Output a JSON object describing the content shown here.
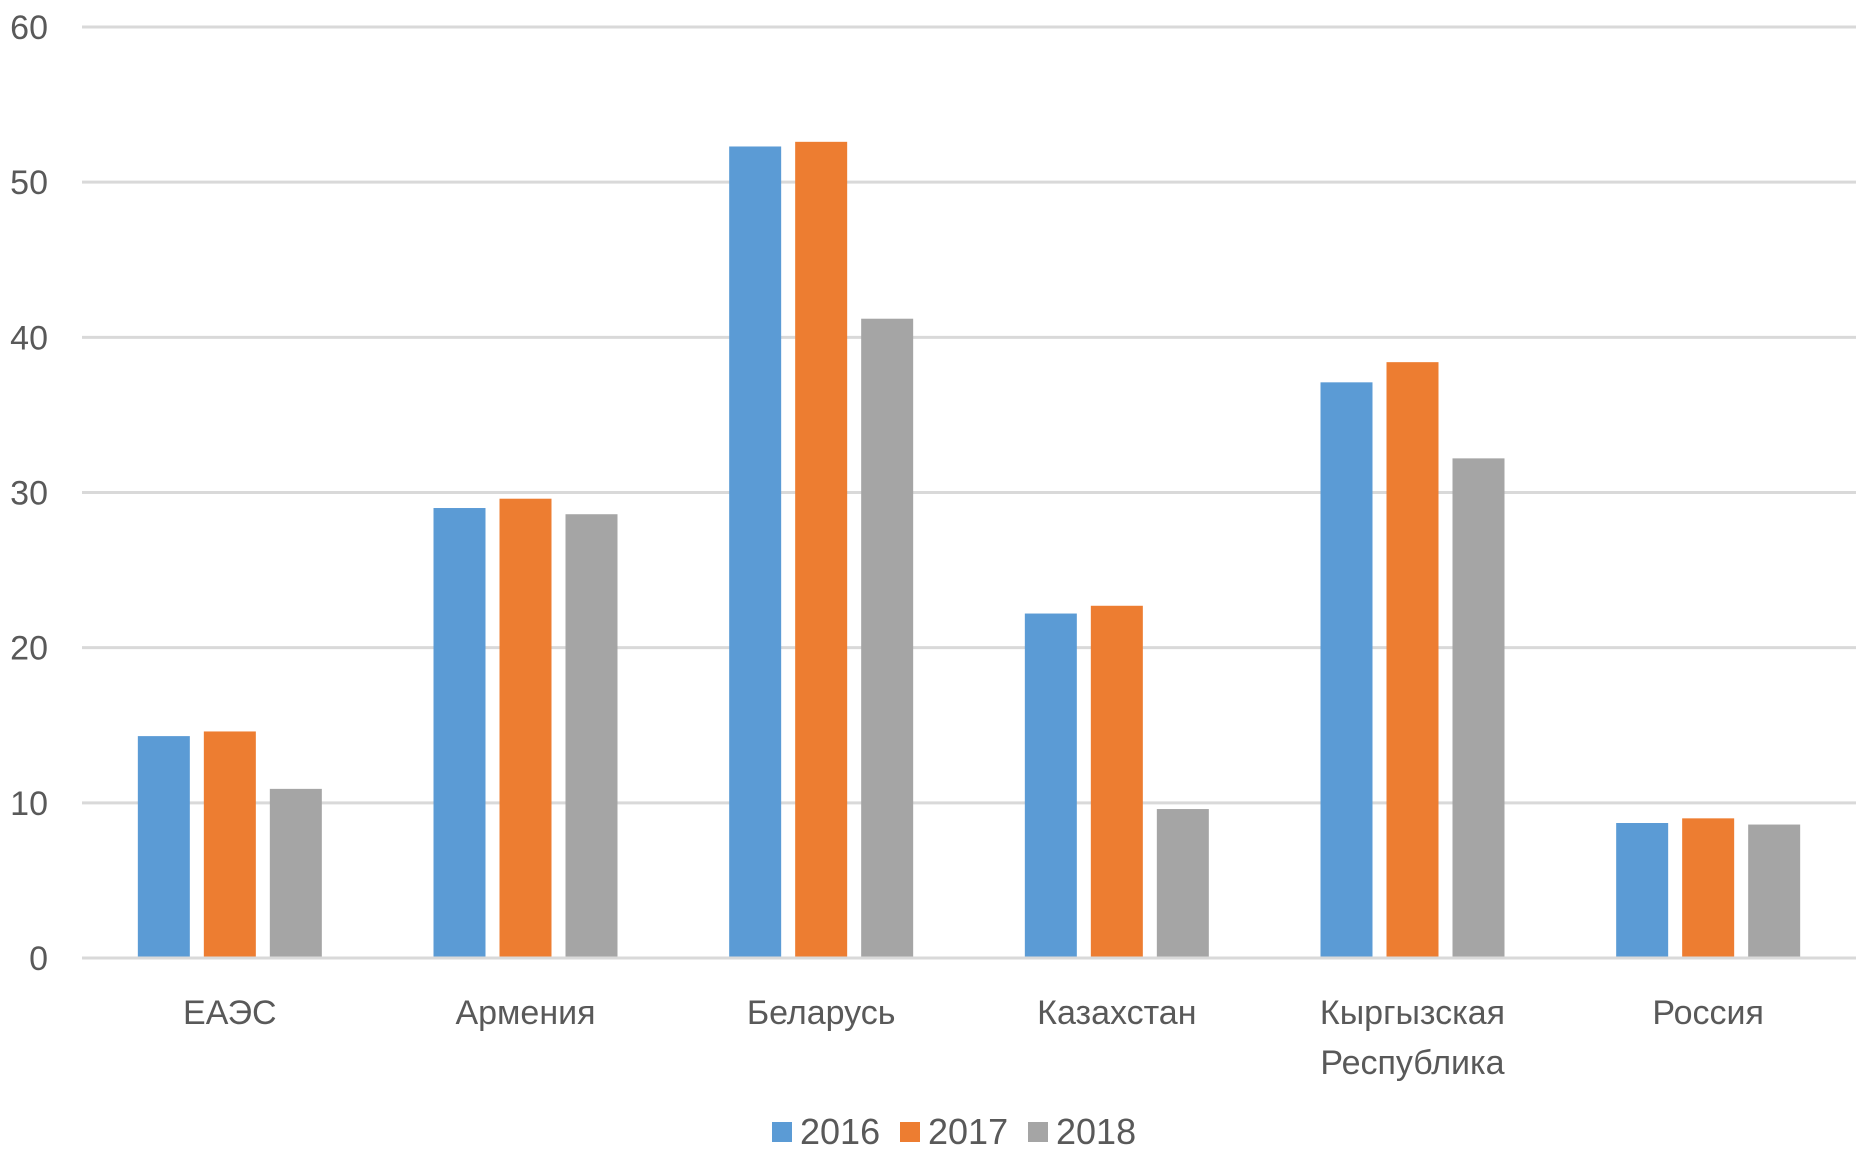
{
  "chart_data": {
    "type": "bar",
    "title": "",
    "xlabel": "",
    "ylabel": "",
    "ylim": [
      0,
      60
    ],
    "yticks": [
      0,
      10,
      20,
      30,
      40,
      50,
      60
    ],
    "grid": true,
    "legend_position": "bottom",
    "categories": [
      [
        "ЕАЭС"
      ],
      [
        "Армения"
      ],
      [
        "Беларусь"
      ],
      [
        "Казахстан"
      ],
      [
        "Кыргызская",
        "Республика"
      ],
      [
        "Россия"
      ]
    ],
    "series": [
      {
        "name": "2016",
        "color": "#5b9bd5",
        "values": [
          14.3,
          29.0,
          52.3,
          22.2,
          37.1,
          8.7
        ]
      },
      {
        "name": "2017",
        "color": "#ed7d31",
        "values": [
          14.6,
          29.6,
          52.6,
          22.7,
          38.4,
          9.0
        ]
      },
      {
        "name": "2018",
        "color": "#a5a5a5",
        "values": [
          10.9,
          28.6,
          41.2,
          9.6,
          32.2,
          8.6
        ]
      }
    ]
  }
}
